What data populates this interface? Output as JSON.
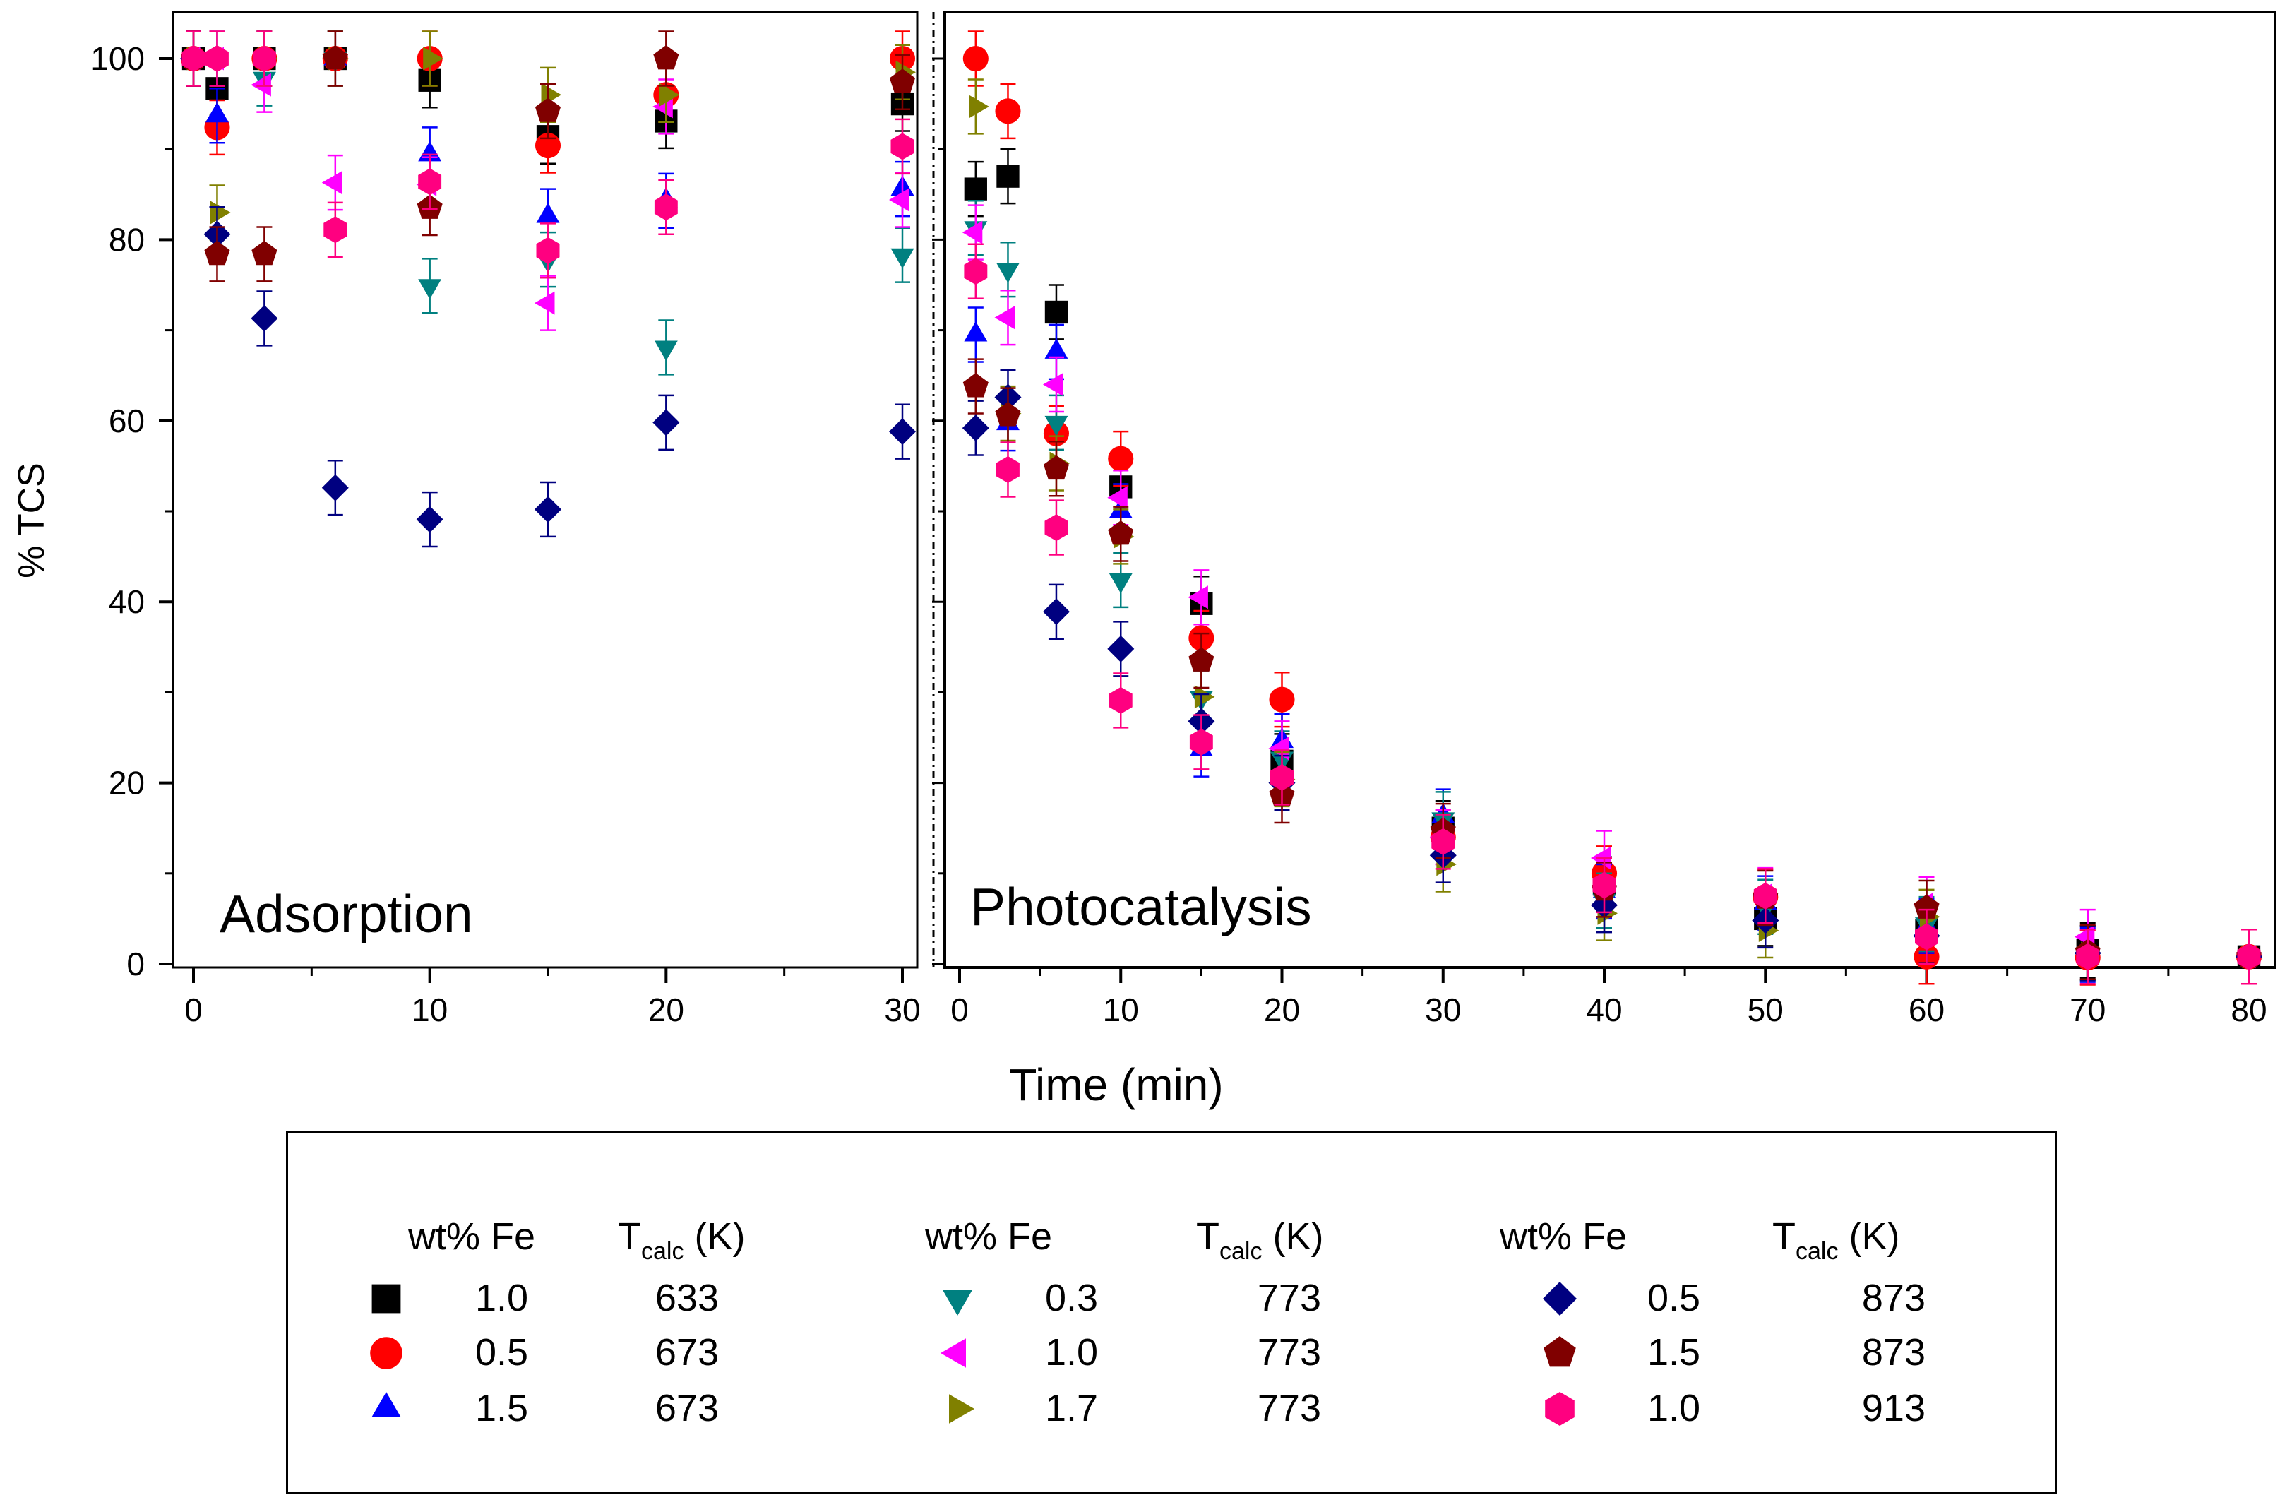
{
  "chart_data": {
    "type": "scatter",
    "ylabel": "% TCS",
    "xlabel": "Time (min)",
    "ylim": [
      0,
      105
    ],
    "yticks": [
      "0",
      "20",
      "40",
      "60",
      "80",
      "100"
    ],
    "panels": [
      {
        "label": "Adsorption",
        "xlim": [
          0,
          30
        ],
        "xticks": [
          "0",
          "10",
          "20",
          "30"
        ],
        "x": [
          0,
          1,
          3,
          6,
          10,
          15,
          20,
          30
        ]
      },
      {
        "label": "Photocatalysis",
        "xlim": [
          0,
          80
        ],
        "xticks": [
          "0",
          "10",
          "20",
          "30",
          "40",
          "50",
          "60",
          "70",
          "80"
        ],
        "x": [
          1,
          3,
          6,
          10,
          15,
          20,
          30,
          40,
          50,
          60,
          70,
          80
        ]
      }
    ],
    "error_bar_approx": 3,
    "legend_headers": {
      "wt": "wt% Fe",
      "t_main": "T",
      "t_sub": "calc",
      "t_unit": " (K)"
    },
    "series": [
      {
        "wt": "1.0",
        "tcalc": "633",
        "marker": "square",
        "color": "#000000",
        "adsorption": [
          100,
          96.7,
          100,
          100,
          97.6,
          91.4,
          93.1,
          95
        ],
        "photocatalysis": [
          85.6,
          87,
          72,
          52.7,
          39.8,
          22.4,
          15,
          8.8,
          5,
          3.7,
          1.5,
          0.8
        ]
      },
      {
        "wt": "0.5",
        "tcalc": "673",
        "marker": "circle",
        "color": "#ff0000",
        "adsorption": [
          100,
          92.4,
          100,
          100,
          100,
          90.4,
          96,
          100
        ],
        "photocatalysis": [
          100,
          94.2,
          58.6,
          55.8,
          36,
          29.2,
          14,
          10,
          7.4,
          0.8,
          0.7,
          0.8
        ]
      },
      {
        "wt": "1.5",
        "tcalc": "673",
        "marker": "triangle-up",
        "color": "#0000ff",
        "adsorption": [
          100,
          93.7,
          100,
          100,
          89.4,
          82.6,
          84.3,
          85.6
        ],
        "photocatalysis": [
          69.5,
          59.7,
          67.6,
          50,
          23.7,
          24.6,
          16.3,
          8,
          6.7,
          4.2,
          1,
          0.8
        ]
      },
      {
        "wt": "0.3",
        "tcalc": "773",
        "marker": "triangle-down",
        "color": "#008080",
        "adsorption": [
          100,
          100,
          97.8,
          100,
          74.9,
          77.8,
          68.1,
          78.3
        ],
        "photocatalysis": [
          81.3,
          76.7,
          59.8,
          42.4,
          29.4,
          22.7,
          16,
          7,
          6.3,
          4.4,
          1.2,
          0.8
        ]
      },
      {
        "wt": "1.0",
        "tcalc": "773",
        "marker": "triangle-left",
        "color": "#ff00ff",
        "adsorption": [
          100,
          100,
          97.1,
          86.3,
          86.1,
          73,
          94.7,
          84.4
        ],
        "photocatalysis": [
          80.8,
          71.4,
          64,
          51.5,
          40.5,
          23.8,
          14,
          11.7,
          7.6,
          6.6,
          3,
          0.8
        ]
      },
      {
        "wt": "1.7",
        "tcalc": "773",
        "marker": "triangle-right",
        "color": "#808000",
        "adsorption": [
          100,
          83,
          100,
          100,
          100,
          96,
          96,
          98.5
        ],
        "photocatalysis": [
          94.7,
          60.8,
          55.3,
          47.2,
          29.5,
          20.4,
          11,
          5.6,
          3.7,
          5.2,
          1.2,
          0.8
        ]
      },
      {
        "wt": "0.5",
        "tcalc": "873",
        "marker": "diamond",
        "color": "#000080",
        "adsorption": [
          100,
          80.6,
          71.3,
          52.6,
          49.1,
          50.2,
          59.8,
          58.8
        ],
        "photocatalysis": [
          59.2,
          62.6,
          38.9,
          34.8,
          26.8,
          20,
          12,
          6.5,
          4.8,
          3.1,
          1.2,
          0.8
        ]
      },
      {
        "wt": "1.5",
        "tcalc": "873",
        "marker": "pentagon",
        "color": "#800000",
        "adsorption": [
          100,
          78.4,
          78.4,
          100,
          83.5,
          94.2,
          100,
          97.4
        ],
        "photocatalysis": [
          63.8,
          60.6,
          54.7,
          47.5,
          33.5,
          18.6,
          14.7,
          8.2,
          7.3,
          6.2,
          1.3,
          0.8
        ]
      },
      {
        "wt": "1.0",
        "tcalc": "913",
        "marker": "hexagon",
        "color": "#ff0080",
        "adsorption": [
          100,
          100,
          100,
          81.1,
          86.4,
          78.8,
          83.6,
          90.3
        ],
        "photocatalysis": [
          76.5,
          54.6,
          48.2,
          29.1,
          24.5,
          20.6,
          13.5,
          8.7,
          7.5,
          3,
          0.8,
          0.8
        ]
      }
    ]
  }
}
